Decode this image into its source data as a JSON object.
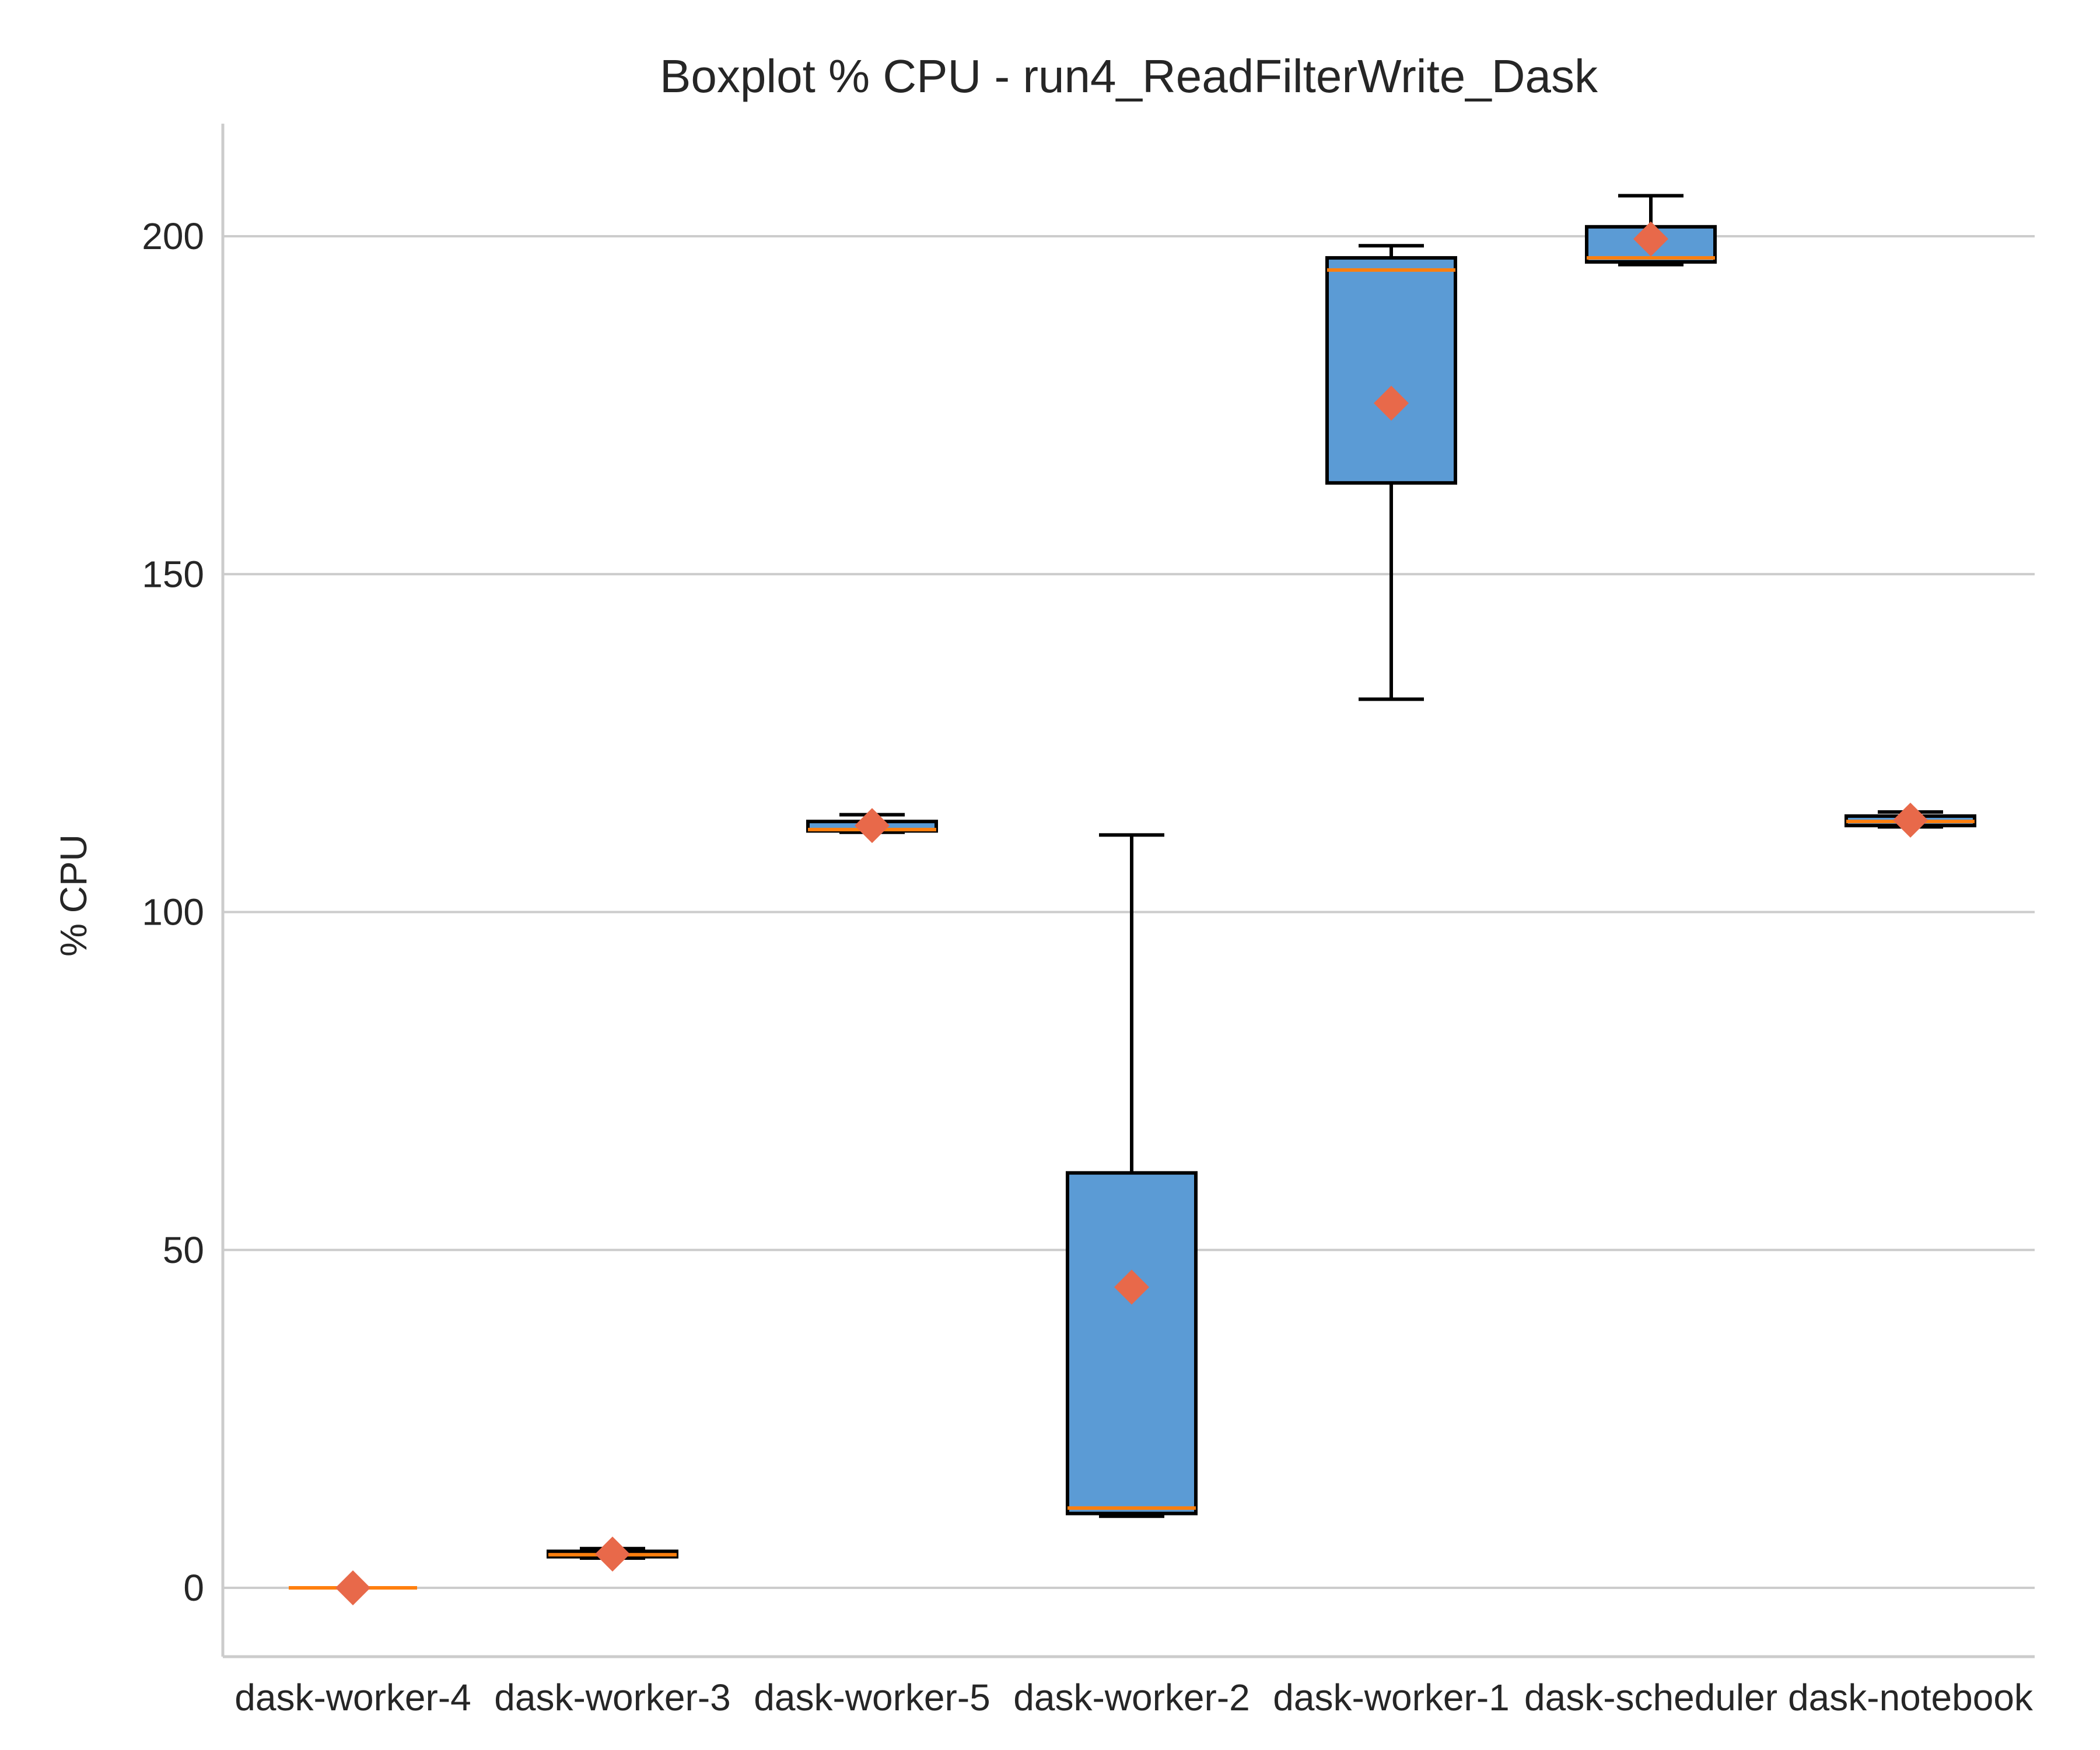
{
  "chart_data": {
    "type": "boxplot",
    "title": "Boxplot % CPU - run4_ReadFilterWrite_Dask",
    "xlabel": "",
    "ylabel": "% CPU",
    "ylim": [
      -10,
      216
    ],
    "yticks": [
      0,
      50,
      100,
      150,
      200
    ],
    "grid": "horizontal",
    "legend": "none",
    "colors": {
      "box_fill": "#5b9bd5",
      "box_edge": "#000000",
      "median": "#ff7f0e",
      "mean_marker": "#e8694a",
      "grid": "#cccccc"
    },
    "categories": [
      "dask-worker-4",
      "dask-worker-3",
      "dask-worker-5",
      "dask-worker-2",
      "dask-worker-1",
      "dask-scheduler",
      "dask-notebook"
    ],
    "boxes": [
      {
        "category": "dask-worker-4",
        "whisker_low": 0,
        "q1": 0,
        "median": 0,
        "q3": 0,
        "whisker_high": 0,
        "mean": 0
      },
      {
        "category": "dask-worker-3",
        "whisker_low": 4.4,
        "q1": 4.6,
        "median": 4.9,
        "q3": 5.4,
        "whisker_high": 5.8,
        "mean": 5.0
      },
      {
        "category": "dask-worker-5",
        "whisker_low": 111.8,
        "q1": 112.0,
        "median": 112.2,
        "q3": 113.4,
        "whisker_high": 114.4,
        "mean": 112.8
      },
      {
        "category": "dask-worker-2",
        "whisker_low": 10.6,
        "q1": 11.0,
        "median": 11.8,
        "q3": 61.4,
        "whisker_high": 111.4,
        "mean": 44.5
      },
      {
        "category": "dask-worker-1",
        "whisker_low": 131.5,
        "q1": 163.5,
        "median": 195.0,
        "q3": 196.8,
        "whisker_high": 198.6,
        "mean": 175.3
      },
      {
        "category": "dask-scheduler",
        "whisker_low": 195.8,
        "q1": 196.2,
        "median": 196.8,
        "q3": 201.4,
        "whisker_high": 206.0,
        "mean": 199.6
      },
      {
        "category": "dask-notebook",
        "whisker_low": 112.6,
        "q1": 112.8,
        "median": 113.4,
        "q3": 114.2,
        "whisker_high": 114.8,
        "mean": 113.6
      }
    ]
  }
}
